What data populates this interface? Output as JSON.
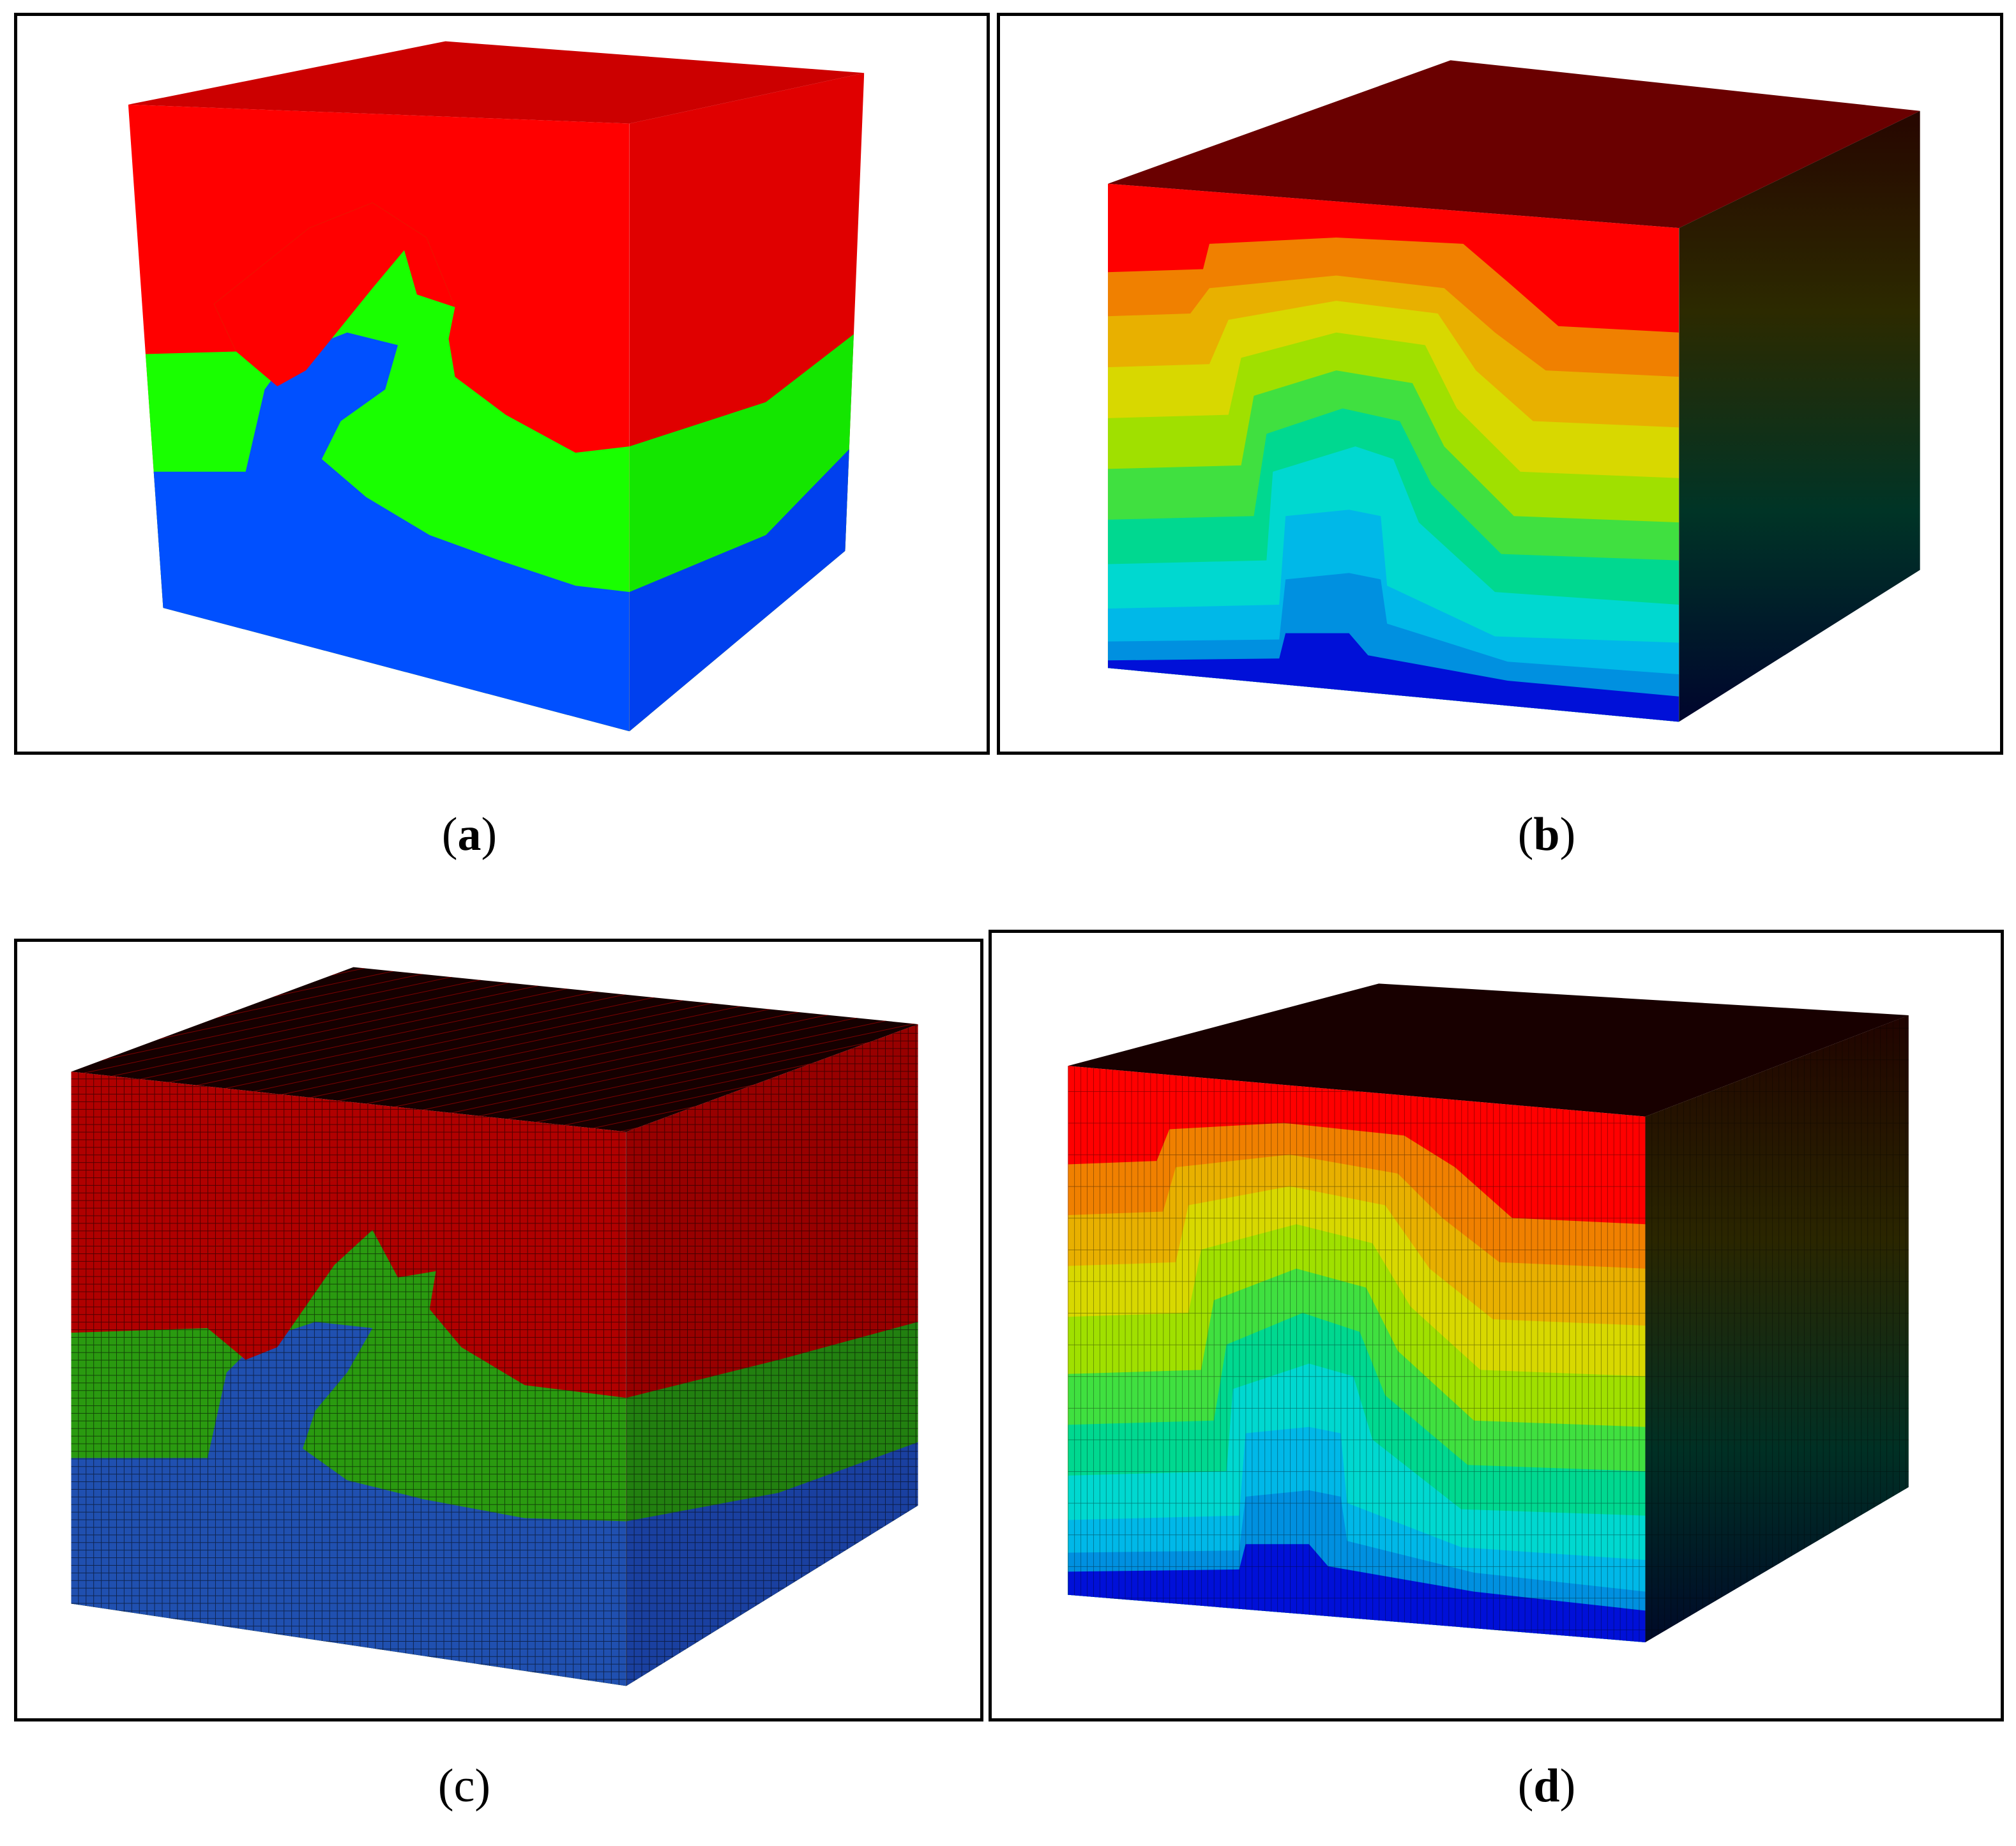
{
  "figure": {
    "panels": [
      {
        "id": "a",
        "label": "a",
        "bold": true
      },
      {
        "id": "b",
        "label": "b",
        "bold": true
      },
      {
        "id": "c",
        "label": "c",
        "bold": false
      },
      {
        "id": "d",
        "label": "d",
        "bold": true
      }
    ],
    "colors": {
      "red": "#ff0000",
      "green": "#19ff00",
      "blue": "#0050ff",
      "dark_red": "#6a0000",
      "frame": "#000000"
    }
  }
}
